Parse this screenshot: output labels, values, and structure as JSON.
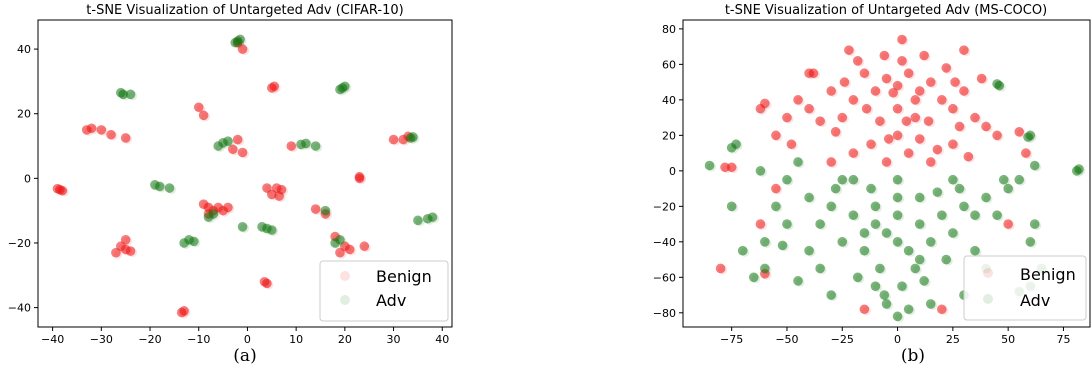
{
  "chart_data": [
    {
      "type": "scatter",
      "title": "t-SNE Visualization of Untargeted Adv (CIFAR-10)",
      "caption": "(a)",
      "xlim": [
        -43,
        42
      ],
      "ylim": [
        -46,
        49
      ],
      "xticks": [
        -40,
        -30,
        -20,
        -10,
        0,
        10,
        20,
        30,
        40
      ],
      "yticks": [
        -40,
        -20,
        0,
        20,
        40
      ],
      "legend": {
        "placement": "lower-right",
        "entries": [
          "Benign",
          "Adv"
        ]
      },
      "colors": {
        "Benign": "#ee1111",
        "Adv": "#117711"
      },
      "series": [
        {
          "name": "Benign",
          "points": [
            [
              -38.5,
              -3.5
            ],
            [
              -38,
              -3.8
            ],
            [
              -39,
              -3.2
            ],
            [
              -33,
              15
            ],
            [
              -32,
              15.5
            ],
            [
              -30,
              15
            ],
            [
              -28,
              13.5
            ],
            [
              -25,
              12.5
            ],
            [
              -25,
              -19
            ],
            [
              -26,
              -21
            ],
            [
              -27,
              -23
            ],
            [
              -25,
              -22
            ],
            [
              -24,
              -22.5
            ],
            [
              -10,
              22
            ],
            [
              -9,
              19.5
            ],
            [
              -8,
              -9
            ],
            [
              -9,
              -8
            ],
            [
              -7,
              -10
            ],
            [
              -8,
              -11
            ],
            [
              -6,
              -9
            ],
            [
              -5,
              -10
            ],
            [
              -4,
              -9
            ],
            [
              -2,
              12
            ],
            [
              -3,
              9
            ],
            [
              -1,
              8
            ],
            [
              5,
              28
            ],
            [
              5.5,
              28.5
            ],
            [
              6,
              -3
            ],
            [
              7,
              -3.5
            ],
            [
              5,
              -5
            ],
            [
              4,
              -3
            ],
            [
              6.5,
              -5.5
            ],
            [
              9,
              10
            ],
            [
              14,
              -9.5
            ],
            [
              16,
              -11
            ],
            [
              23,
              0
            ],
            [
              23,
              0.5
            ],
            [
              18,
              -18
            ],
            [
              20,
              -21
            ],
            [
              21,
              -22
            ],
            [
              24,
              -21
            ],
            [
              19,
              -23
            ],
            [
              4,
              -32.5
            ],
            [
              3.5,
              -32
            ],
            [
              -13.5,
              -41.5
            ],
            [
              -13,
              -41
            ],
            [
              -1,
              40
            ],
            [
              -2,
              42
            ],
            [
              32,
              12
            ],
            [
              33,
              13
            ],
            [
              30,
              12
            ]
          ]
        },
        {
          "name": "Adv",
          "points": [
            [
              -2,
              42.5
            ],
            [
              -1.5,
              43
            ],
            [
              -2.5,
              42
            ],
            [
              19.5,
              28
            ],
            [
              20,
              28.5
            ],
            [
              19,
              27.5
            ],
            [
              -26,
              26.5
            ],
            [
              -25.5,
              26
            ],
            [
              -24,
              26
            ],
            [
              33.5,
              12.5
            ],
            [
              34,
              12.8
            ],
            [
              -5,
              11
            ],
            [
              -4,
              11.5
            ],
            [
              -6,
              10
            ],
            [
              11,
              10.5
            ],
            [
              12,
              10.8
            ],
            [
              14,
              10
            ],
            [
              -19,
              -2
            ],
            [
              -18,
              -2.5
            ],
            [
              -16,
              -3
            ],
            [
              -11,
              -19.5
            ],
            [
              -12,
              -19
            ],
            [
              -13,
              -20
            ],
            [
              4,
              -15.5
            ],
            [
              3,
              -15
            ],
            [
              5,
              -16
            ],
            [
              -1,
              -15
            ],
            [
              38,
              -12
            ],
            [
              37,
              -12.5
            ],
            [
              35,
              -13
            ],
            [
              19,
              -19
            ],
            [
              18,
              -20
            ],
            [
              -8,
              -12
            ],
            [
              -7,
              -11
            ],
            [
              16,
              -10
            ]
          ]
        }
      ]
    },
    {
      "type": "scatter",
      "title": "t-SNE Visualization of Untargeted Adv (MS-COCO)",
      "caption": "(b)",
      "xlim": [
        -97,
        87
      ],
      "ylim": [
        -88,
        85
      ],
      "xticks": [
        -75,
        -50,
        -25,
        0,
        25,
        50,
        75
      ],
      "yticks": [
        -80,
        -60,
        -40,
        -20,
        0,
        20,
        40,
        60,
        80
      ],
      "legend": {
        "placement": "lower-right",
        "entries": [
          "Benign",
          "Adv"
        ]
      },
      "colors": {
        "Benign": "#ee1111",
        "Adv": "#117711"
      },
      "series": [
        {
          "name": "Benign",
          "points": [
            [
              0,
              48
            ],
            [
              -5,
              52
            ],
            [
              5,
              55
            ],
            [
              10,
              45
            ],
            [
              -10,
              45
            ],
            [
              15,
              50
            ],
            [
              -15,
              55
            ],
            [
              20,
              40
            ],
            [
              -20,
              40
            ],
            [
              0,
              35
            ],
            [
              8,
              30
            ],
            [
              -8,
              28
            ],
            [
              25,
              35
            ],
            [
              -25,
              30
            ],
            [
              30,
              45
            ],
            [
              -30,
              45
            ],
            [
              2,
              62
            ],
            [
              -6,
              65
            ],
            [
              12,
              65
            ],
            [
              -18,
              62
            ],
            [
              22,
              58
            ],
            [
              28,
              25
            ],
            [
              -28,
              22
            ],
            [
              35,
              30
            ],
            [
              -35,
              28
            ],
            [
              0,
              20
            ],
            [
              10,
              18
            ],
            [
              -12,
              15
            ],
            [
              18,
              12
            ],
            [
              -20,
              10
            ],
            [
              5,
              10
            ],
            [
              -5,
              5
            ],
            [
              15,
              5
            ],
            [
              25,
              15
            ],
            [
              -40,
              35
            ],
            [
              -45,
              40
            ],
            [
              40,
              25
            ],
            [
              45,
              20
            ],
            [
              -50,
              30
            ],
            [
              -55,
              20
            ],
            [
              30,
              68
            ],
            [
              -22,
              68
            ],
            [
              2,
              74
            ],
            [
              -38,
              55
            ],
            [
              38,
              52
            ],
            [
              -62,
              35
            ],
            [
              -60,
              38
            ],
            [
              -62,
              -30
            ],
            [
              -75,
              2
            ],
            [
              -78,
              2
            ],
            [
              -55,
              -10
            ],
            [
              55,
              22
            ],
            [
              58,
              10
            ],
            [
              -48,
              15
            ],
            [
              -30,
              5
            ],
            [
              32,
              8
            ],
            [
              -40,
              55
            ],
            [
              20,
              -78
            ],
            [
              -15,
              -78
            ],
            [
              -60,
              -58
            ],
            [
              -80,
              -55
            ],
            [
              50,
              -30
            ],
            [
              -2,
              44
            ],
            [
              8,
              40
            ],
            [
              -14,
              35
            ],
            [
              14,
              28
            ],
            [
              -24,
              50
            ],
            [
              26,
              50
            ],
            [
              4,
              28
            ],
            [
              -4,
              18
            ]
          ]
        },
        {
          "name": "Adv",
          "points": [
            [
              0,
              -40
            ],
            [
              -5,
              -35
            ],
            [
              5,
              -45
            ],
            [
              10,
              -30
            ],
            [
              -10,
              -30
            ],
            [
              15,
              -40
            ],
            [
              -15,
              -45
            ],
            [
              20,
              -25
            ],
            [
              -20,
              -25
            ],
            [
              0,
              -25
            ],
            [
              8,
              -55
            ],
            [
              -8,
              -55
            ],
            [
              25,
              -35
            ],
            [
              -25,
              -40
            ],
            [
              30,
              -20
            ],
            [
              -30,
              -20
            ],
            [
              2,
              -65
            ],
            [
              -6,
              -70
            ],
            [
              12,
              -62
            ],
            [
              -18,
              -60
            ],
            [
              22,
              -50
            ],
            [
              28,
              -10
            ],
            [
              -28,
              -10
            ],
            [
              35,
              -25
            ],
            [
              -35,
              -30
            ],
            [
              0,
              -15
            ],
            [
              10,
              -15
            ],
            [
              -12,
              -10
            ],
            [
              18,
              -12
            ],
            [
              -20,
              -5
            ],
            [
              40,
              -15
            ],
            [
              45,
              -25
            ],
            [
              -40,
              -15
            ],
            [
              -50,
              -30
            ],
            [
              50,
              -10
            ],
            [
              -55,
              -20
            ],
            [
              -60,
              -40
            ],
            [
              60,
              -40
            ],
            [
              -65,
              -60
            ],
            [
              65,
              -55
            ],
            [
              -73,
              15
            ],
            [
              -75,
              13
            ],
            [
              -85,
              3
            ],
            [
              -62,
              0
            ],
            [
              -52,
              -42
            ],
            [
              45,
              49
            ],
            [
              46,
              48
            ],
            [
              60,
              20
            ],
            [
              59,
              19
            ],
            [
              62,
              3
            ],
            [
              82,
              1
            ],
            [
              81,
              0
            ],
            [
              -75,
              -20
            ],
            [
              -70,
              -45
            ],
            [
              60,
              -65
            ],
            [
              55,
              -68
            ],
            [
              -45,
              -62
            ],
            [
              40,
              -55
            ],
            [
              -35,
              -55
            ],
            [
              -40,
              -45
            ],
            [
              0,
              -82
            ],
            [
              5,
              -78
            ],
            [
              -5,
              -75
            ],
            [
              30,
              -70
            ],
            [
              -30,
              -70
            ],
            [
              15,
              -75
            ],
            [
              -10,
              -65
            ],
            [
              55,
              -5
            ],
            [
              -45,
              5
            ],
            [
              48,
              -5
            ],
            [
              62,
              -30
            ],
            [
              -60,
              -55
            ],
            [
              -25,
              -5
            ],
            [
              25,
              -5
            ],
            [
              0,
              -5
            ],
            [
              -10,
              -20
            ],
            [
              10,
              -50
            ],
            [
              -15,
              -35
            ],
            [
              35,
              -45
            ],
            [
              -50,
              -5
            ]
          ]
        }
      ]
    }
  ]
}
